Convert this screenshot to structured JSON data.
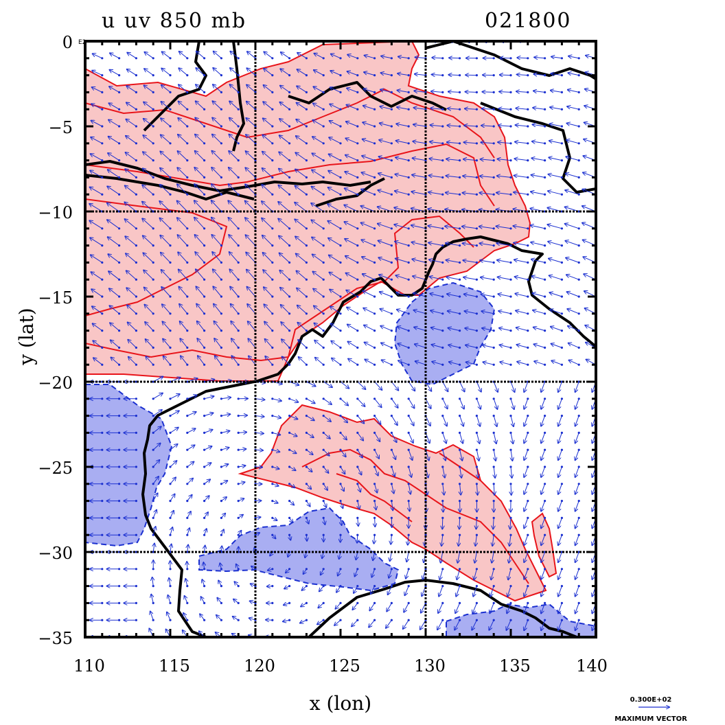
{
  "title": {
    "left": "u  uv  850  mb",
    "right": "021800"
  },
  "axes": {
    "xlabel": "x (lon)",
    "ylabel": "y (lat)",
    "xticks": [
      "110",
      "115",
      "120",
      "125",
      "130",
      "135",
      "140"
    ],
    "yticks": [
      "0",
      "−5",
      "−10",
      "−15",
      "−20",
      "−25",
      "−30",
      "−35"
    ],
    "y_top_suffix": "E2",
    "xlim": [
      110,
      140
    ],
    "ylim": [
      -35,
      0
    ],
    "grid": "every 10 degrees"
  },
  "legend": {
    "value": "0.300E+02",
    "label": "MAXIMUM VECTOR"
  },
  "colors": {
    "positive_fill": "#f9c6c6",
    "positive_line": "#e8141a",
    "negative_fill": "#a9aef2",
    "negative_line": "#1a2fd0",
    "vector": "#1a2fd0",
    "coast": "#000000"
  }
}
